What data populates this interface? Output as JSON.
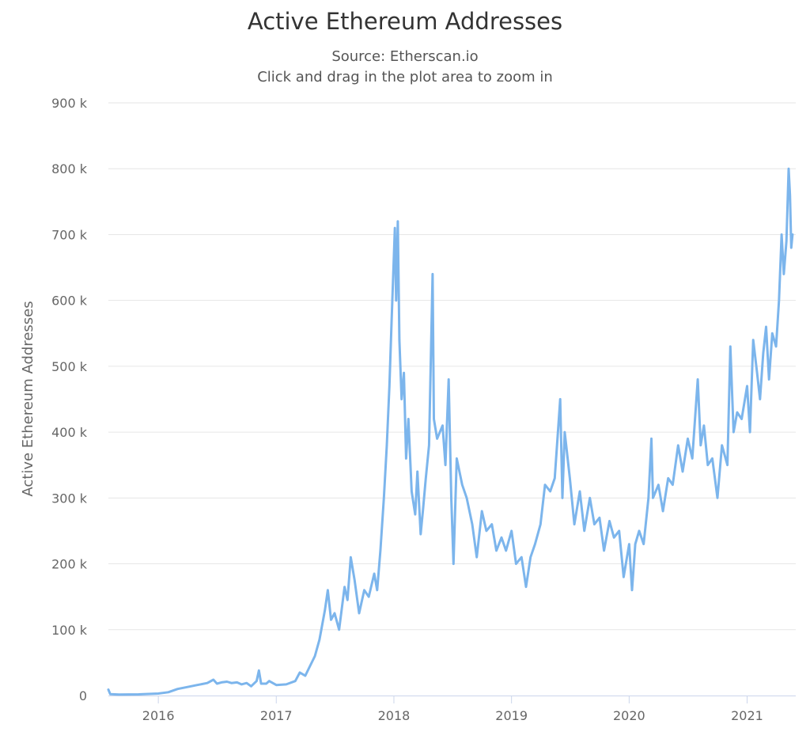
{
  "colors": {
    "series": "#7cb5ec",
    "grid": "#e6e6e6",
    "axis_line": "#ccd6eb",
    "text": "#666666",
    "title": "#333333"
  },
  "chart_data": {
    "type": "line",
    "title": "Active Ethereum Addresses",
    "subtitle": "Source: Etherscan.io",
    "subtitle2": "Click and drag in the plot area to zoom in",
    "xlabel": "",
    "ylabel": "Active Ethereum Addresses",
    "xlim": [
      "2015-07-30",
      "2021-06-01"
    ],
    "ylim": [
      0,
      900000
    ],
    "grid": true,
    "legend": "none",
    "x_ticks": [
      "2016",
      "2017",
      "2018",
      "2019",
      "2020",
      "2021"
    ],
    "y_ticks": [
      "0",
      "100 k",
      "200 k",
      "300 k",
      "400 k",
      "500 k",
      "600 k",
      "700 k",
      "800 k",
      "900 k"
    ],
    "series": [
      {
        "values": [
          [
            "2015-07-30",
            9000
          ],
          [
            "2015-08-05",
            2000
          ],
          [
            "2015-09-01",
            1500
          ],
          [
            "2015-11-01",
            1800
          ],
          [
            "2016-01-01",
            3000
          ],
          [
            "2016-02-01",
            5000
          ],
          [
            "2016-03-01",
            10000
          ],
          [
            "2016-04-01",
            13000
          ],
          [
            "2016-05-01",
            16000
          ],
          [
            "2016-06-01",
            19000
          ],
          [
            "2016-06-20",
            24000
          ],
          [
            "2016-07-01",
            18000
          ],
          [
            "2016-07-15",
            20000
          ],
          [
            "2016-08-01",
            21000
          ],
          [
            "2016-08-15",
            19000
          ],
          [
            "2016-09-01",
            20000
          ],
          [
            "2016-09-15",
            17000
          ],
          [
            "2016-10-01",
            19000
          ],
          [
            "2016-10-15",
            14000
          ],
          [
            "2016-11-01",
            22000
          ],
          [
            "2016-11-08",
            38000
          ],
          [
            "2016-11-15",
            18000
          ],
          [
            "2016-12-01",
            18000
          ],
          [
            "2016-12-10",
            22000
          ],
          [
            "2017-01-01",
            16000
          ],
          [
            "2017-02-01",
            17000
          ],
          [
            "2017-03-01",
            22000
          ],
          [
            "2017-03-15",
            35000
          ],
          [
            "2017-04-01",
            30000
          ],
          [
            "2017-04-15",
            44000
          ],
          [
            "2017-05-01",
            60000
          ],
          [
            "2017-05-15",
            85000
          ],
          [
            "2017-06-01",
            130000
          ],
          [
            "2017-06-10",
            160000
          ],
          [
            "2017-06-20",
            115000
          ],
          [
            "2017-07-01",
            125000
          ],
          [
            "2017-07-15",
            100000
          ],
          [
            "2017-08-01",
            165000
          ],
          [
            "2017-08-10",
            145000
          ],
          [
            "2017-08-20",
            210000
          ],
          [
            "2017-09-01",
            175000
          ],
          [
            "2017-09-15",
            125000
          ],
          [
            "2017-10-01",
            160000
          ],
          [
            "2017-10-15",
            150000
          ],
          [
            "2017-11-01",
            185000
          ],
          [
            "2017-11-10",
            160000
          ],
          [
            "2017-11-20",
            220000
          ],
          [
            "2017-12-01",
            300000
          ],
          [
            "2017-12-10",
            380000
          ],
          [
            "2017-12-18",
            470000
          ],
          [
            "2017-12-25",
            570000
          ],
          [
            "2018-01-04",
            710000
          ],
          [
            "2018-01-08",
            600000
          ],
          [
            "2018-01-13",
            720000
          ],
          [
            "2018-01-18",
            540000
          ],
          [
            "2018-01-25",
            450000
          ],
          [
            "2018-02-01",
            490000
          ],
          [
            "2018-02-08",
            360000
          ],
          [
            "2018-02-15",
            420000
          ],
          [
            "2018-02-25",
            310000
          ],
          [
            "2018-03-08",
            275000
          ],
          [
            "2018-03-15",
            340000
          ],
          [
            "2018-03-25",
            245000
          ],
          [
            "2018-04-01",
            280000
          ],
          [
            "2018-04-10",
            330000
          ],
          [
            "2018-04-20",
            380000
          ],
          [
            "2018-05-01",
            640000
          ],
          [
            "2018-05-05",
            420000
          ],
          [
            "2018-05-15",
            390000
          ],
          [
            "2018-06-01",
            410000
          ],
          [
            "2018-06-10",
            350000
          ],
          [
            "2018-06-20",
            480000
          ],
          [
            "2018-06-28",
            300000
          ],
          [
            "2018-07-05",
            200000
          ],
          [
            "2018-07-15",
            360000
          ],
          [
            "2018-08-01",
            320000
          ],
          [
            "2018-08-15",
            300000
          ],
          [
            "2018-09-01",
            260000
          ],
          [
            "2018-09-15",
            210000
          ],
          [
            "2018-10-01",
            280000
          ],
          [
            "2018-10-15",
            250000
          ],
          [
            "2018-11-01",
            260000
          ],
          [
            "2018-11-15",
            220000
          ],
          [
            "2018-12-01",
            240000
          ],
          [
            "2018-12-15",
            220000
          ],
          [
            "2019-01-01",
            250000
          ],
          [
            "2019-01-15",
            200000
          ],
          [
            "2019-02-01",
            210000
          ],
          [
            "2019-02-15",
            165000
          ],
          [
            "2019-03-01",
            210000
          ],
          [
            "2019-03-15",
            230000
          ],
          [
            "2019-04-01",
            260000
          ],
          [
            "2019-04-15",
            320000
          ],
          [
            "2019-05-01",
            310000
          ],
          [
            "2019-05-15",
            330000
          ],
          [
            "2019-06-01",
            450000
          ],
          [
            "2019-06-08",
            300000
          ],
          [
            "2019-06-15",
            400000
          ],
          [
            "2019-07-01",
            330000
          ],
          [
            "2019-07-15",
            260000
          ],
          [
            "2019-08-01",
            310000
          ],
          [
            "2019-08-15",
            250000
          ],
          [
            "2019-09-01",
            300000
          ],
          [
            "2019-09-15",
            260000
          ],
          [
            "2019-10-01",
            270000
          ],
          [
            "2019-10-15",
            220000
          ],
          [
            "2019-11-01",
            265000
          ],
          [
            "2019-11-15",
            240000
          ],
          [
            "2019-12-01",
            250000
          ],
          [
            "2019-12-15",
            180000
          ],
          [
            "2020-01-01",
            230000
          ],
          [
            "2020-01-10",
            160000
          ],
          [
            "2020-01-20",
            230000
          ],
          [
            "2020-02-01",
            250000
          ],
          [
            "2020-02-15",
            230000
          ],
          [
            "2020-03-01",
            300000
          ],
          [
            "2020-03-10",
            390000
          ],
          [
            "2020-03-15",
            300000
          ],
          [
            "2020-04-01",
            320000
          ],
          [
            "2020-04-15",
            280000
          ],
          [
            "2020-05-01",
            330000
          ],
          [
            "2020-05-15",
            320000
          ],
          [
            "2020-06-01",
            380000
          ],
          [
            "2020-06-15",
            340000
          ],
          [
            "2020-07-01",
            390000
          ],
          [
            "2020-07-15",
            360000
          ],
          [
            "2020-08-01",
            480000
          ],
          [
            "2020-08-10",
            380000
          ],
          [
            "2020-08-20",
            410000
          ],
          [
            "2020-09-01",
            350000
          ],
          [
            "2020-09-15",
            360000
          ],
          [
            "2020-10-01",
            300000
          ],
          [
            "2020-10-15",
            380000
          ],
          [
            "2020-11-01",
            350000
          ],
          [
            "2020-11-10",
            530000
          ],
          [
            "2020-11-20",
            400000
          ],
          [
            "2020-12-01",
            430000
          ],
          [
            "2020-12-15",
            420000
          ],
          [
            "2021-01-01",
            470000
          ],
          [
            "2021-01-10",
            400000
          ],
          [
            "2021-01-20",
            540000
          ],
          [
            "2021-02-01",
            490000
          ],
          [
            "2021-02-10",
            450000
          ],
          [
            "2021-02-20",
            520000
          ],
          [
            "2021-03-01",
            560000
          ],
          [
            "2021-03-10",
            480000
          ],
          [
            "2021-03-20",
            550000
          ],
          [
            "2021-04-01",
            530000
          ],
          [
            "2021-04-10",
            600000
          ],
          [
            "2021-04-18",
            700000
          ],
          [
            "2021-04-25",
            640000
          ],
          [
            "2021-05-03",
            690000
          ],
          [
            "2021-05-10",
            800000
          ],
          [
            "2021-05-14",
            760000
          ],
          [
            "2021-05-18",
            680000
          ],
          [
            "2021-05-22",
            700000
          ]
        ]
      }
    ]
  }
}
